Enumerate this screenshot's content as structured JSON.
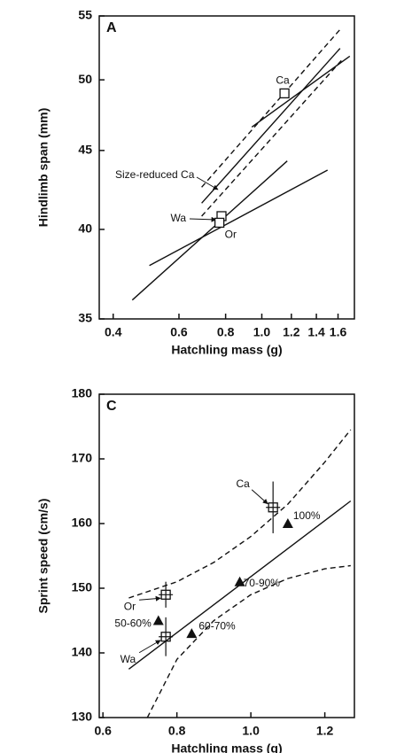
{
  "chart_data": [
    {
      "type": "line",
      "panel_label": "A",
      "x_label": "Hatchling mass (g)",
      "y_label": "Hindlimb span (mm)",
      "xscale": "log",
      "yscale": "log",
      "xlim": [
        0.367,
        1.77
      ],
      "ylim": [
        35,
        55
      ],
      "xticks": [
        0.4,
        0.6,
        0.8,
        {
          "value": 1,
          "label": "1.0"
        },
        1.2,
        1.4,
        1.6
      ],
      "yticks": [
        35,
        40,
        45,
        50,
        55
      ],
      "lines": [
        {
          "style": "solid",
          "x": [
            0.94,
            1.72
          ],
          "y": [
            46.6,
            51.8
          ]
        },
        {
          "style": "solid",
          "x": [
            0.69,
            1.62
          ],
          "y": [
            41.6,
            52.4
          ]
        },
        {
          "style": "dashed",
          "x": [
            0.69,
            1.62
          ],
          "y": [
            42.6,
            53.9
          ]
        },
        {
          "style": "dashed",
          "x": [
            0.69,
            1.65
          ],
          "y": [
            40.8,
            51.6
          ]
        },
        {
          "style": "solid",
          "x": [
            0.45,
            1.17
          ],
          "y": [
            36.0,
            44.3
          ]
        },
        {
          "style": "solid",
          "x": [
            0.5,
            1.5
          ],
          "y": [
            37.9,
            43.7
          ]
        }
      ],
      "markers": [
        {
          "shape": "square",
          "x": [
            1.15,
            0.78,
            0.77
          ],
          "y": [
            49,
            40.8,
            40.4
          ],
          "labels": [
            "Ca",
            "Wa",
            "Or"
          ]
        }
      ],
      "annotation": "Size-reduced Ca"
    },
    {
      "type": "scatter",
      "panel_label": "C",
      "x_label": "Hatchling mass (g)",
      "y_label": "Sprint speed (cm/s)",
      "xscale": "linear",
      "yscale": "linear",
      "xlim": [
        0.59,
        1.28
      ],
      "ylim": [
        130,
        180
      ],
      "xticks": [
        0.6,
        0.8,
        {
          "value": 1,
          "label": "1.0"
        },
        1.2
      ],
      "yticks": [
        130,
        140,
        150,
        160,
        170,
        180
      ],
      "lines": [
        {
          "style": "solid",
          "x": [
            0.67,
            1.27
          ],
          "y": [
            137.5,
            163.5
          ]
        },
        {
          "style": "dashed",
          "x": [
            0.67,
            0.8,
            0.9,
            1.0,
            1.1,
            1.2,
            1.27
          ],
          "y": [
            148.5,
            151,
            154,
            158,
            163,
            169.5,
            174.5
          ]
        },
        {
          "style": "dashed",
          "x": [
            0.72,
            0.8,
            0.9,
            1.0,
            1.1,
            1.2,
            1.27
          ],
          "y": [
            130,
            139,
            145,
            149,
            151.5,
            153,
            153.5
          ]
        }
      ],
      "markers": [
        {
          "shape": "square",
          "x": [
            1.06,
            0.77,
            0.77
          ],
          "y": [
            162.5,
            149,
            142.5
          ],
          "errors": [
            4,
            2,
            3
          ],
          "labels": [
            "Ca",
            "Or",
            "Wa"
          ]
        },
        {
          "shape": "triangle",
          "x": [
            1.1,
            0.97,
            0.84,
            0.75
          ],
          "y": [
            160,
            151,
            143,
            145
          ],
          "labels": [
            "100%",
            "70-90%",
            "60-70%",
            "50-60%"
          ]
        }
      ]
    }
  ]
}
